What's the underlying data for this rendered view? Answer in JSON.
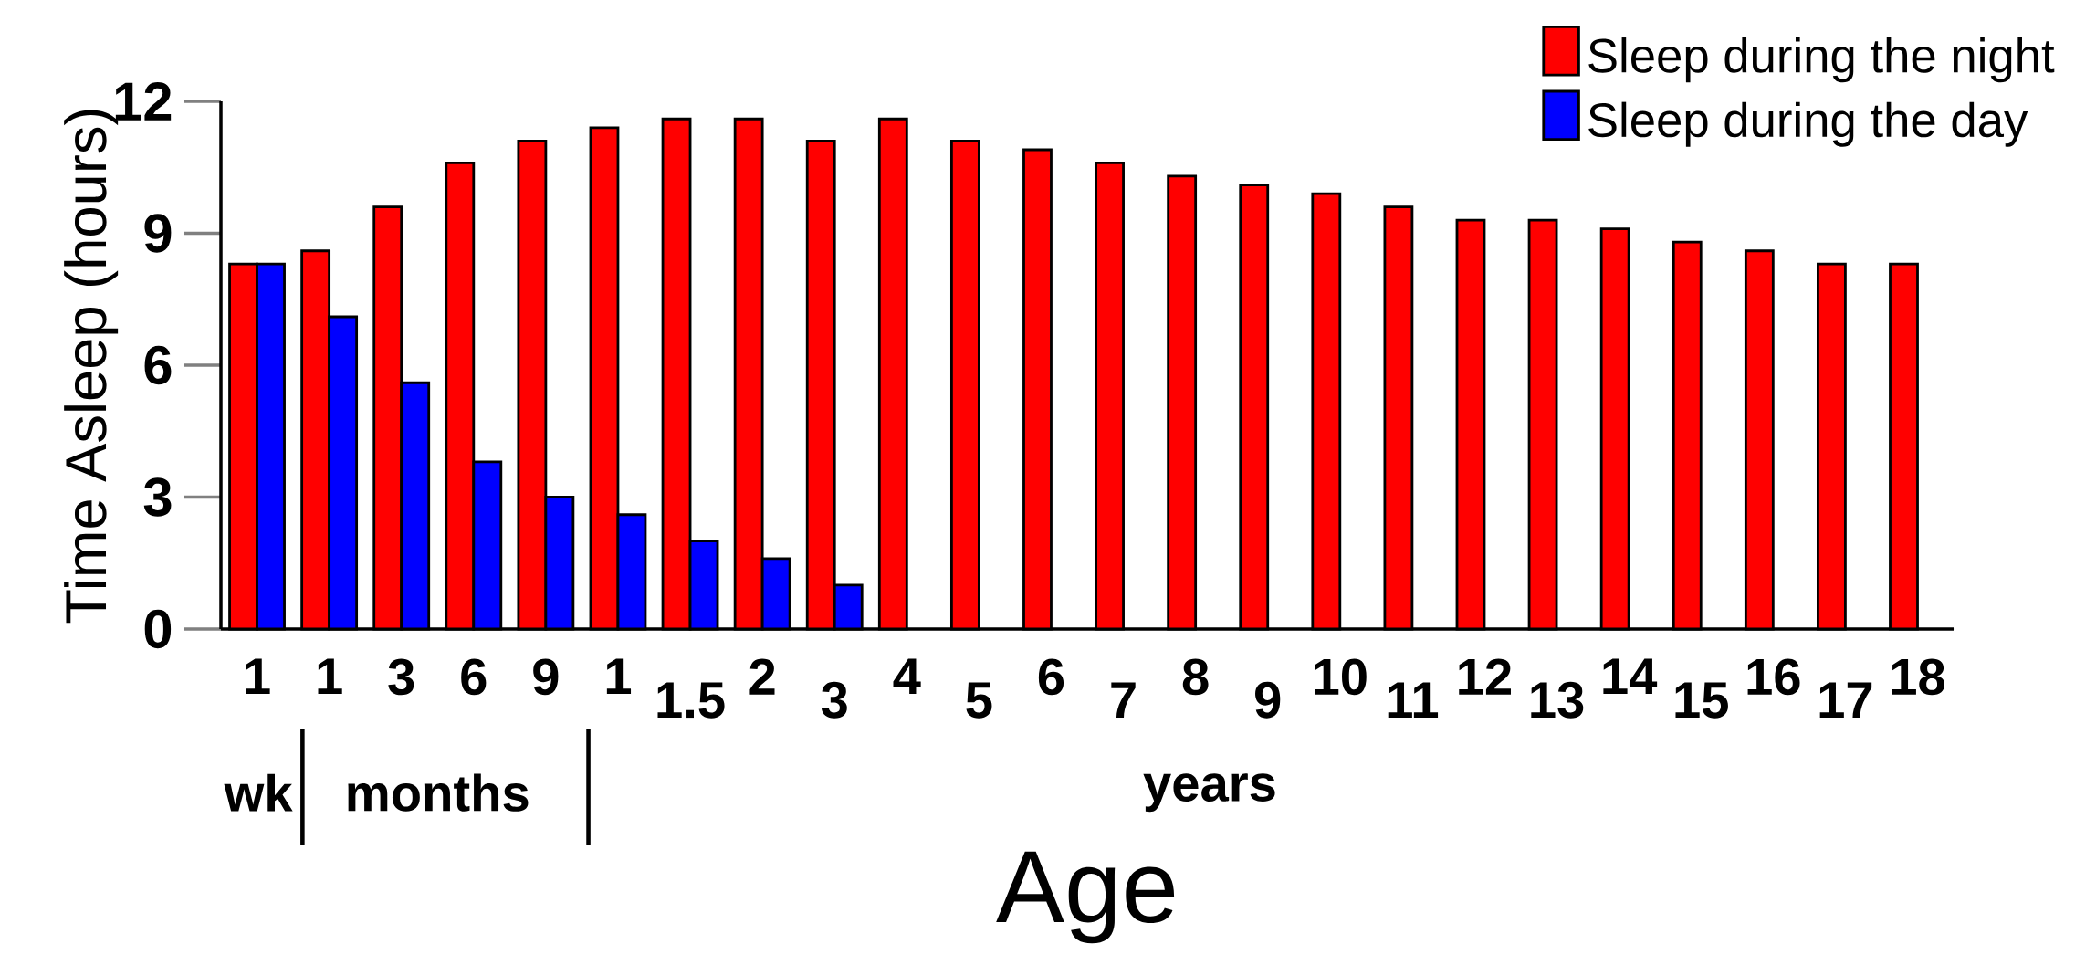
{
  "chart_data": {
    "type": "bar",
    "categories": [
      "1",
      "1",
      "3",
      "6",
      "9",
      "1",
      "1.5",
      "2",
      "3",
      "4",
      "5",
      "6",
      "7",
      "8",
      "9",
      "10",
      "11",
      "12",
      "13",
      "14",
      "15",
      "16",
      "17",
      "18"
    ],
    "series": [
      {
        "name": "Sleep during the night",
        "color": "#ff0000",
        "values": [
          8.3,
          8.6,
          9.6,
          10.6,
          11.1,
          11.4,
          11.6,
          11.6,
          11.1,
          11.6,
          11.1,
          10.9,
          10.6,
          10.3,
          10.1,
          9.9,
          9.6,
          9.3,
          9.3,
          9.1,
          8.8,
          8.6,
          8.3,
          8.3
        ]
      },
      {
        "name": "Sleep during the day",
        "color": "#0000ff",
        "values": [
          8.3,
          7.1,
          5.6,
          3.8,
          3.0,
          2.6,
          2.0,
          1.6,
          1.0,
          null,
          null,
          null,
          null,
          null,
          null,
          null,
          null,
          null,
          null,
          null,
          null,
          null,
          null,
          null
        ]
      }
    ],
    "ylabel": "Time Asleep (hours)",
    "xlabel": "Age",
    "ylim": [
      0,
      12
    ],
    "yticks": [
      0,
      3,
      6,
      9,
      12
    ],
    "annotations": [
      "wk",
      "months",
      "years"
    ],
    "legend": "top right",
    "grid": false
  }
}
